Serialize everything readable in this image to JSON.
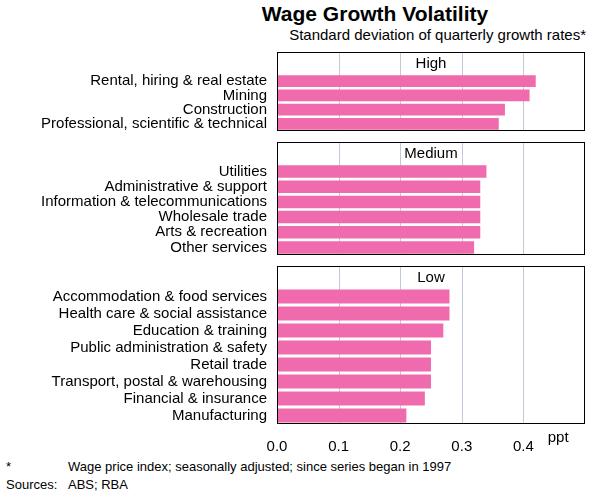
{
  "chart_data": {
    "type": "bar",
    "orientation": "horizontal",
    "title": "Wage Growth Volatility",
    "subtitle": "Standard deviation of quarterly growth rates*",
    "xlabel": "ppt",
    "color": "#f06aae",
    "grid": true,
    "xlim": [
      0,
      0.5
    ],
    "xticks": [
      {
        "value": 0,
        "label": "0.0"
      },
      0.1,
      0.2,
      0.3,
      0.4
    ],
    "panels": [
      {
        "title": "High",
        "categories": [
          "Rental, hiring & real estate",
          "Mining",
          "Construction",
          "Professional, scientific & technical"
        ],
        "values": [
          0.42,
          0.41,
          0.37,
          0.36
        ]
      },
      {
        "title": "Medium",
        "categories": [
          "Utilities",
          "Administrative & support",
          "Information & telecommunications",
          "Wholesale trade",
          "Arts & recreation",
          "Other services"
        ],
        "values": [
          0.34,
          0.33,
          0.33,
          0.33,
          0.33,
          0.32
        ]
      },
      {
        "title": "Low",
        "categories": [
          "Accommodation & food services",
          "Health care & social assistance",
          "Education & training",
          "Public administration & safety",
          "Retail trade",
          "Transport, postal & warehousing",
          "Financial & insurance",
          "Manufacturing"
        ],
        "values": [
          0.28,
          0.28,
          0.27,
          0.25,
          0.25,
          0.25,
          0.24,
          0.21
        ]
      }
    ],
    "footnote": {
      "marker": "*",
      "text": "Wage price index; seasonally adjusted; since series began in 1997"
    },
    "sources": {
      "label": "Sources:",
      "text": "ABS; RBA"
    }
  }
}
